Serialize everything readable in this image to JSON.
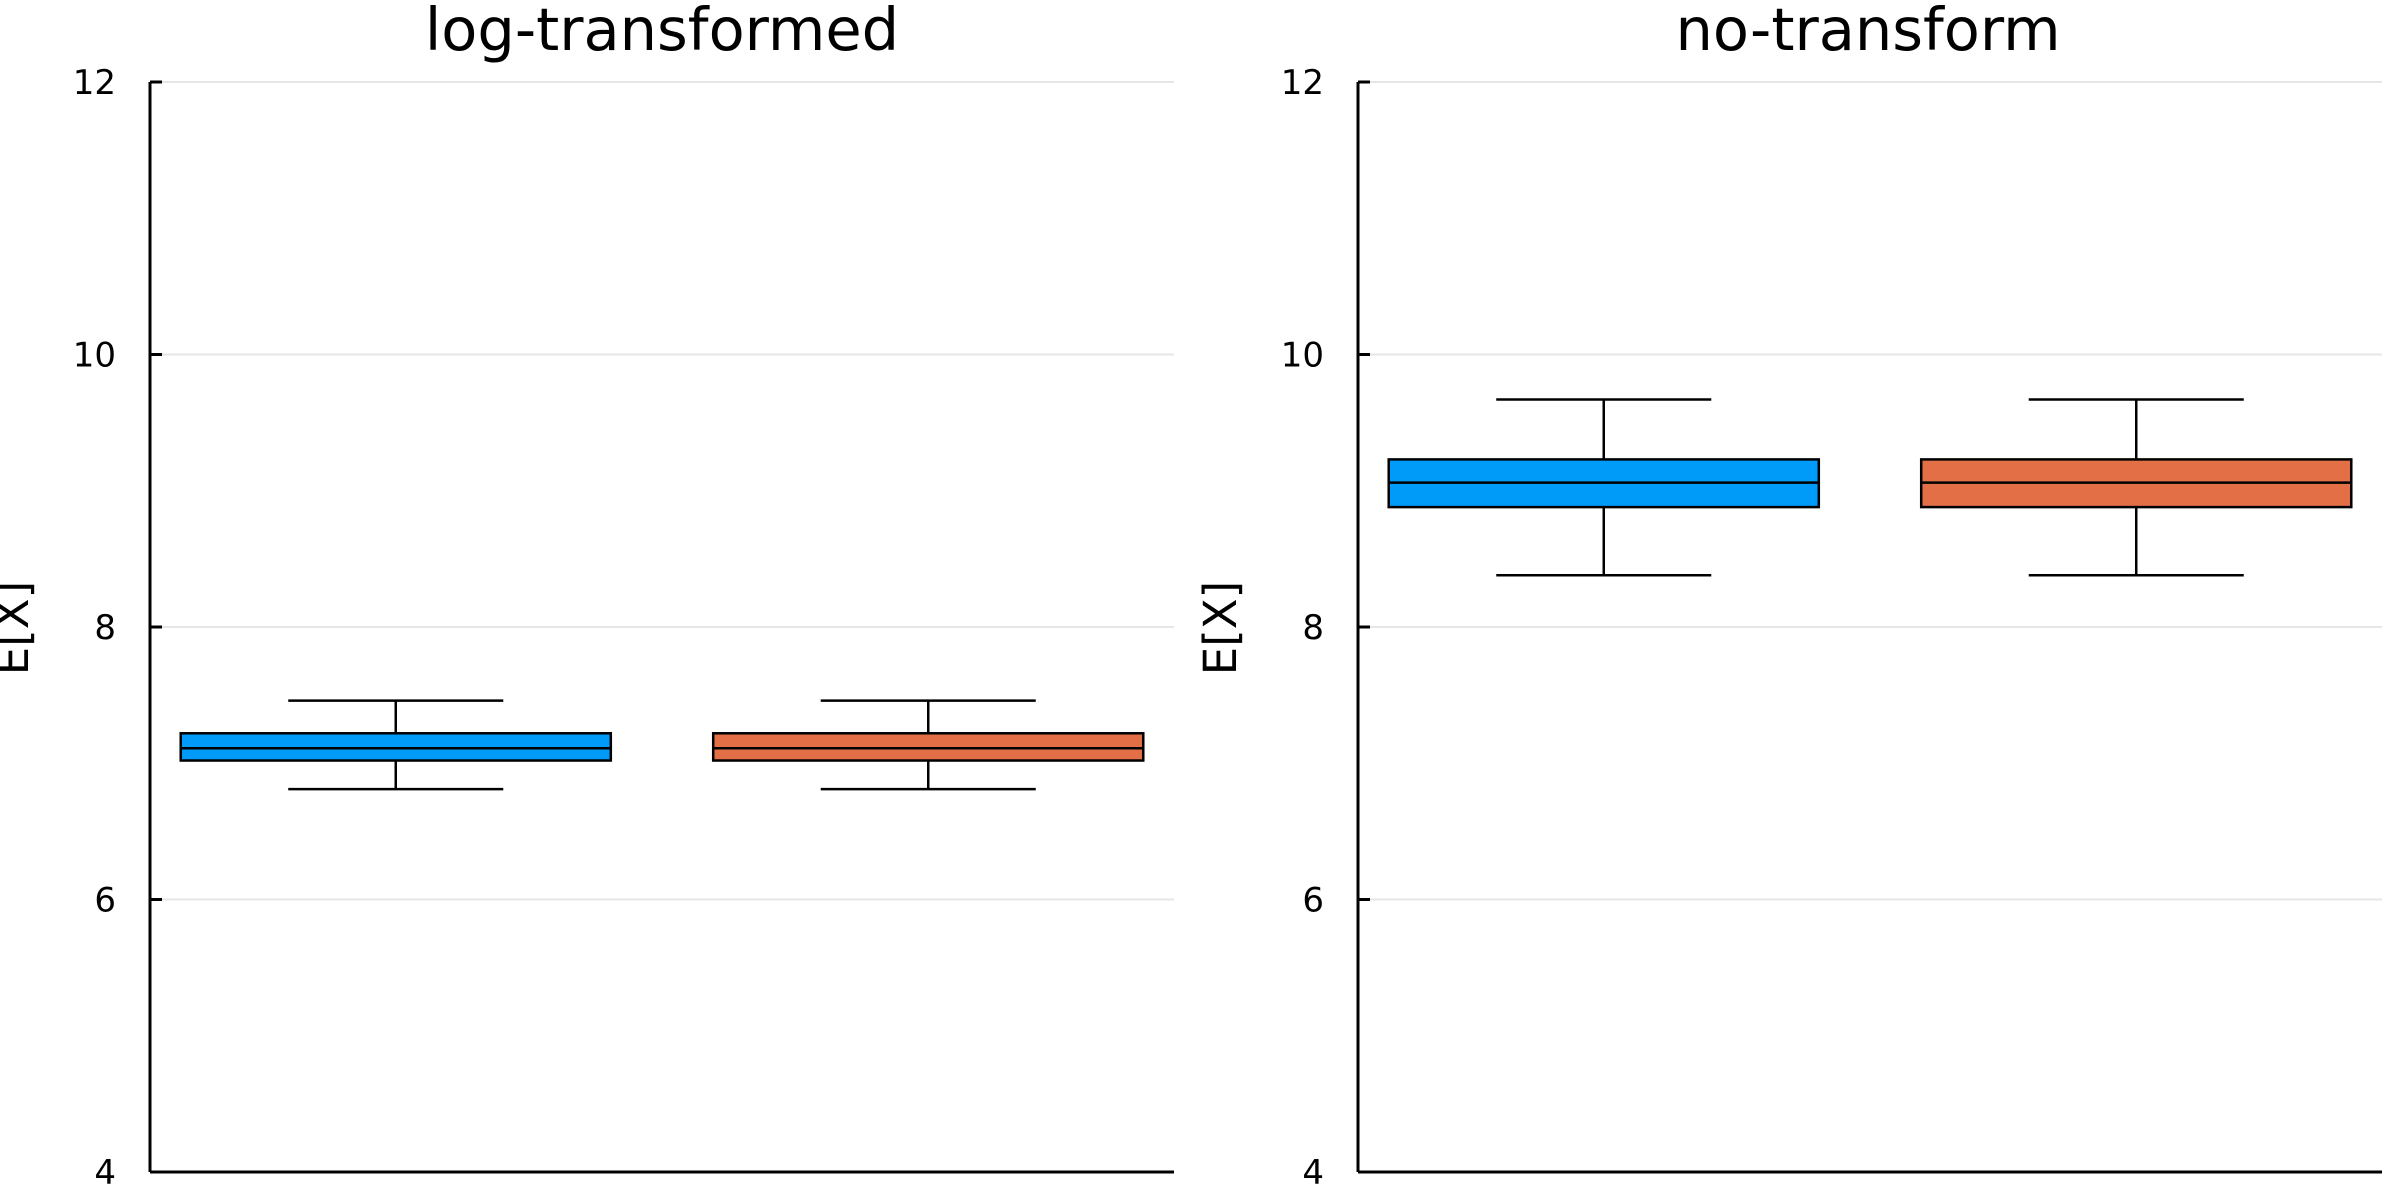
{
  "chart_data": [
    {
      "type": "box",
      "title": "log-transformed",
      "xlabel": "",
      "ylabel": "E[X]",
      "ylim": [
        4,
        12
      ],
      "yticks": [
        4,
        6,
        8,
        10,
        12
      ],
      "grid": true,
      "legend": "none",
      "series": [
        {
          "color": "#009af9",
          "whisker_low": 6.81,
          "q1": 7.02,
          "median": 7.11,
          "q3": 7.22,
          "whisker_high": 7.46
        },
        {
          "color": "#e26f46",
          "whisker_low": 6.81,
          "q1": 7.02,
          "median": 7.11,
          "q3": 7.22,
          "whisker_high": 7.46
        }
      ]
    },
    {
      "type": "box",
      "title": "no-transform",
      "xlabel": "",
      "ylabel": "E[X]",
      "ylim": [
        4,
        12
      ],
      "yticks": [
        4,
        6,
        8,
        10,
        12
      ],
      "grid": true,
      "legend": "none",
      "series": [
        {
          "color": "#009af9",
          "whisker_low": 8.38,
          "q1": 8.88,
          "median": 9.06,
          "q3": 9.23,
          "whisker_high": 9.67
        },
        {
          "color": "#e26f46",
          "whisker_low": 8.38,
          "q1": 8.88,
          "median": 9.06,
          "q3": 9.23,
          "whisker_high": 9.67
        }
      ]
    }
  ]
}
